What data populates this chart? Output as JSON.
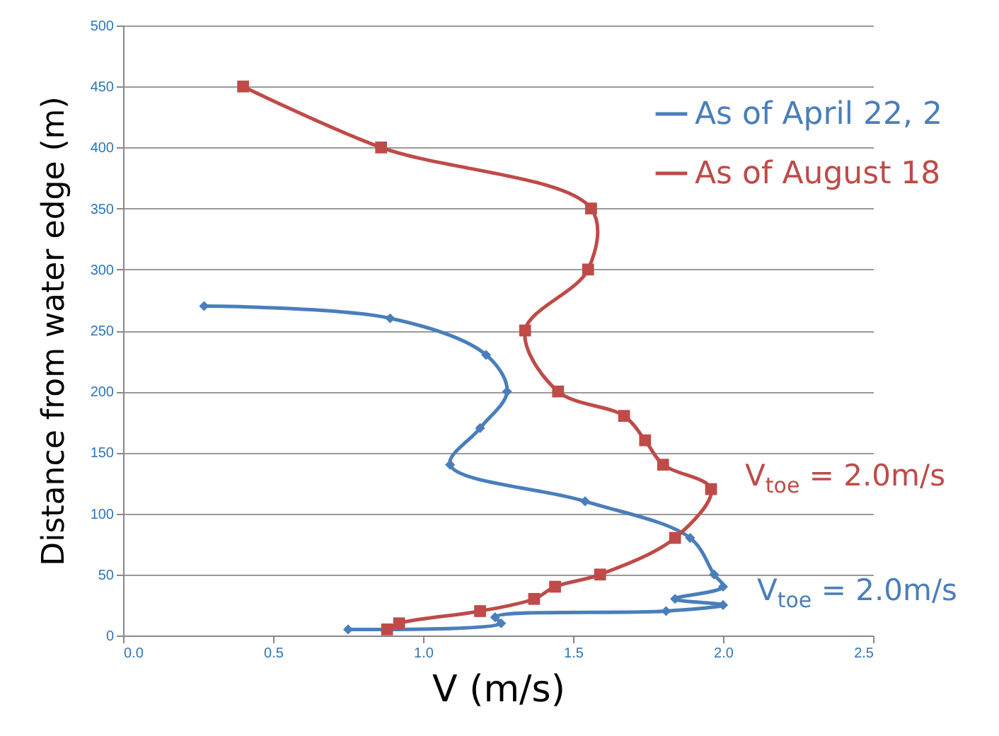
{
  "chart_data": {
    "type": "line",
    "xlabel": "V (m/s)",
    "ylabel": "Distance from water edge (m)",
    "series": [
      {
        "name": "As of April 22, 2",
        "color": "#4a7ebb",
        "marker": "diamond",
        "x": [
          0.27,
          0.89,
          1.21,
          1.28,
          1.19,
          1.09,
          1.54,
          1.89,
          1.97,
          2.0,
          1.84,
          2.0,
          1.81,
          1.24,
          1.26,
          0.75
        ],
        "values": [
          270,
          260,
          230,
          200,
          170,
          140,
          110,
          80,
          50,
          40,
          30,
          25,
          20,
          15,
          10,
          5
        ]
      },
      {
        "name": "As of August 18",
        "color": "#be4b48",
        "marker": "square",
        "x": [
          0.4,
          0.86,
          1.56,
          1.55,
          1.34,
          1.45,
          1.67,
          1.74,
          1.8,
          1.96,
          1.84,
          1.59,
          1.44,
          1.37,
          1.19,
          0.92,
          0.88
        ],
        "values": [
          450,
          400,
          350,
          300,
          250,
          200,
          180,
          160,
          140,
          120,
          80,
          50,
          40,
          30,
          20,
          10,
          5
        ]
      }
    ],
    "xlim": [
      0,
      2.5
    ],
    "xticks": [
      {
        "value": 0,
        "label": "0.0"
      },
      0.5,
      {
        "value": 1,
        "label": "1.0"
      },
      1.5,
      {
        "value": 2,
        "label": "2.0"
      },
      2.5
    ],
    "ylim": [
      0,
      500
    ],
    "yticks": [
      0,
      50,
      100,
      150,
      200,
      250,
      300,
      350,
      400,
      450,
      500
    ],
    "grid": "y",
    "legend": "right",
    "line_style": "solid",
    "annotations": [
      {
        "text": "V$_{toe}$ =  2.0m/s",
        "x": 1.96,
        "y": 120
      },
      {
        "text": "V$_{toe}$ =  2.0m/s",
        "x": 2.0,
        "y": 25
      }
    ]
  }
}
